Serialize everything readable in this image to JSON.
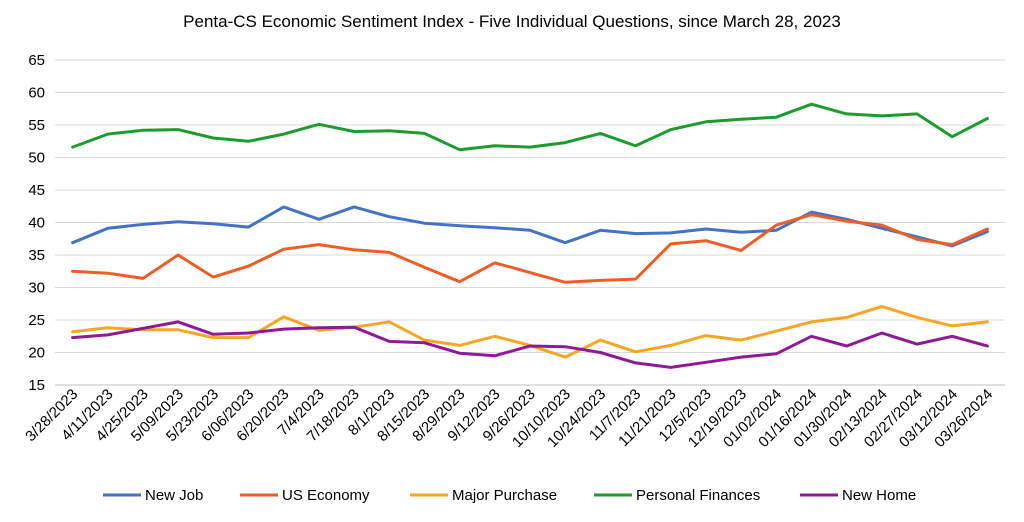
{
  "chart_data": {
    "type": "line",
    "title": "Penta-CS Economic Sentiment Index - Five Individual Questions, since March 28, 2023",
    "xlabel": "",
    "ylabel": "",
    "ylim": [
      15,
      65
    ],
    "yticks": [
      15,
      20,
      25,
      30,
      35,
      40,
      45,
      50,
      55,
      60,
      65
    ],
    "grid": "horizontal",
    "legend_position": "bottom",
    "categories": [
      "3/28/2023",
      "4/11/2023",
      "4/25/2023",
      "5/09/2023",
      "5/23/2023",
      "6/06/2023",
      "6/20/2023",
      "7/4/2023",
      "7/18/2023",
      "8/1/2023",
      "8/15/2023",
      "8/29/2023",
      "9/12/2023",
      "9/26/2023",
      "10/10/2023",
      "10/24/2023",
      "11/7/2023",
      "11/21/2023",
      "12/5/2023",
      "12/19/2023",
      "01/02/2024",
      "01/16/2024",
      "01/30/2024",
      "02/13/2024",
      "02/27/2024",
      "03/12/2024",
      "03/26/2024"
    ],
    "series": [
      {
        "name": "New Job",
        "color": "#4472C4",
        "values": [
          36.9,
          39.1,
          39.7,
          40.1,
          39.8,
          39.3,
          42.4,
          40.5,
          42.4,
          40.9,
          39.9,
          39.5,
          39.2,
          38.8,
          36.9,
          38.8,
          38.3,
          38.4,
          39.0,
          38.5,
          38.8,
          41.6,
          40.5,
          39.1,
          37.8,
          36.4,
          38.6
        ]
      },
      {
        "name": "US Economy",
        "color": "#ED5E27",
        "values": [
          32.5,
          32.2,
          31.4,
          35.0,
          31.6,
          33.3,
          35.9,
          36.6,
          35.8,
          35.4,
          33.1,
          30.9,
          33.8,
          32.3,
          30.8,
          31.1,
          31.3,
          36.7,
          37.2,
          35.7,
          39.6,
          41.2,
          40.2,
          39.6,
          37.4,
          36.6,
          39.0
        ]
      },
      {
        "name": "Major Purchase",
        "color": "#F5A623",
        "values": [
          23.2,
          23.8,
          23.5,
          23.5,
          22.3,
          22.3,
          25.5,
          23.4,
          23.9,
          24.7,
          21.9,
          21.1,
          22.5,
          21.1,
          19.3,
          21.9,
          20.1,
          21.1,
          22.6,
          21.9,
          23.3,
          24.7,
          25.4,
          27.1,
          25.4,
          24.1,
          24.7
        ]
      },
      {
        "name": "Personal Finances",
        "color": "#1E9B2E",
        "values": [
          51.6,
          53.6,
          54.2,
          54.3,
          53.0,
          52.5,
          53.6,
          55.1,
          54.0,
          54.1,
          53.7,
          51.2,
          51.8,
          51.6,
          52.3,
          53.7,
          51.8,
          54.3,
          55.5,
          55.9,
          56.2,
          58.2,
          56.7,
          56.4,
          56.7,
          53.2,
          56.0
        ]
      },
      {
        "name": "New Home",
        "color": "#8E1A97",
        "values": [
          22.3,
          22.7,
          23.7,
          24.7,
          22.8,
          23.0,
          23.6,
          23.8,
          23.9,
          21.7,
          21.5,
          19.9,
          19.5,
          21.0,
          20.9,
          20.0,
          18.4,
          17.7,
          18.5,
          19.3,
          19.8,
          22.5,
          21.0,
          23.0,
          21.3,
          22.5,
          21.0
        ]
      }
    ]
  }
}
